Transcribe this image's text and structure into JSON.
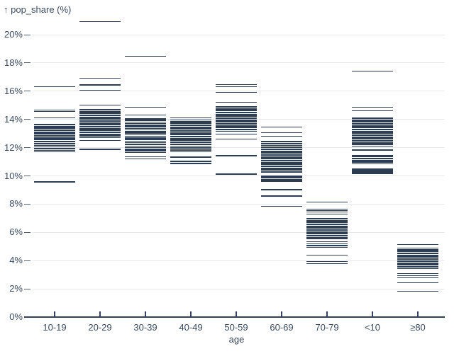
{
  "title": "↑ pop_share (%)",
  "chart_data": {
    "type": "tick-strip",
    "title": "↑ pop_share (%)",
    "xlabel": "age",
    "ylabel": "pop_share (%)",
    "grid": true,
    "legend": "none",
    "ylim": [
      0,
      21.5
    ],
    "y_ticks": [
      0,
      2,
      4,
      6,
      8,
      10,
      12,
      14,
      16,
      18,
      20
    ],
    "y_tick_labels": [
      "0%",
      "2%",
      "4%",
      "6%",
      "8%",
      "10%",
      "12%",
      "14%",
      "16%",
      "18%",
      "20%"
    ],
    "categories": [
      "10-19",
      "20-29",
      "30-39",
      "40-49",
      "50-59",
      "60-69",
      "70-79",
      "<10",
      "≥80"
    ],
    "colors": {
      "tick": "#2c3c52",
      "axis_text": "#3a4a61",
      "gridline": "#e6e8eb",
      "background": "#ffffff"
    },
    "series": [
      {
        "category": "10-19",
        "values": [
          16.3,
          14.65,
          14.52,
          14.1,
          13.65,
          13.57,
          13.49,
          13.41,
          13.33,
          13.25,
          13.17,
          13.09,
          13.01,
          12.93,
          12.85,
          12.77,
          12.69,
          12.61,
          12.53,
          12.45,
          12.37,
          12.29,
          12.21,
          12.13,
          12.02,
          11.9,
          11.78,
          11.66,
          9.55
        ]
      },
      {
        "category": "20-29",
        "values": [
          20.9,
          16.9,
          16.42,
          16.05,
          15.0,
          14.7,
          14.62,
          14.54,
          14.46,
          14.38,
          14.3,
          14.22,
          14.14,
          14.06,
          13.98,
          13.9,
          13.82,
          13.74,
          13.66,
          13.58,
          13.5,
          13.42,
          13.34,
          13.26,
          13.18,
          13.1,
          13.02,
          12.94,
          12.86,
          12.78,
          12.68,
          12.48,
          11.85
        ]
      },
      {
        "category": "30-39",
        "values": [
          18.45,
          14.85,
          14.3,
          14.05,
          13.96,
          13.87,
          13.78,
          13.69,
          13.6,
          13.51,
          13.42,
          13.33,
          13.24,
          13.15,
          13.06,
          12.97,
          12.88,
          12.79,
          12.7,
          12.61,
          12.52,
          12.43,
          12.34,
          12.25,
          12.16,
          12.07,
          11.98,
          11.89,
          11.8,
          11.72,
          11.64,
          11.33,
          11.18
        ]
      },
      {
        "category": "40-49",
        "values": [
          14.08,
          13.92,
          13.84,
          13.76,
          13.68,
          13.6,
          13.52,
          13.44,
          13.36,
          13.28,
          13.2,
          13.12,
          13.04,
          12.96,
          12.88,
          12.8,
          12.72,
          12.64,
          12.56,
          12.48,
          12.4,
          12.32,
          12.24,
          12.16,
          12.08,
          12.0,
          11.92,
          11.84,
          11.76,
          11.68,
          11.3,
          11.0,
          10.85
        ]
      },
      {
        "category": "50-59",
        "values": [
          16.45,
          16.3,
          15.9,
          15.2,
          14.9,
          14.82,
          14.74,
          14.66,
          14.58,
          14.5,
          14.42,
          14.34,
          14.26,
          14.18,
          14.1,
          14.02,
          13.94,
          13.86,
          13.78,
          13.7,
          13.62,
          13.54,
          13.46,
          13.38,
          13.3,
          13.22,
          13.14,
          12.95,
          12.6,
          11.4,
          10.1
        ]
      },
      {
        "category": "60-69",
        "values": [
          13.45,
          13.05,
          12.8,
          12.45,
          12.37,
          12.29,
          12.21,
          12.13,
          12.05,
          11.97,
          11.89,
          11.81,
          11.73,
          11.65,
          11.57,
          11.49,
          11.41,
          11.33,
          11.25,
          11.17,
          11.09,
          11.01,
          10.93,
          10.85,
          10.77,
          10.69,
          10.61,
          10.53,
          10.45,
          10.37,
          10.29,
          10.21,
          9.95,
          9.85,
          9.7,
          9.6,
          9.0,
          8.55,
          7.8
        ]
      },
      {
        "category": "70-79",
        "values": [
          8.1,
          7.62,
          7.52,
          7.42,
          7.25,
          6.98,
          6.9,
          6.82,
          6.74,
          6.66,
          6.58,
          6.5,
          6.42,
          6.34,
          6.26,
          6.18,
          6.1,
          6.02,
          5.94,
          5.86,
          5.78,
          5.7,
          5.62,
          5.54,
          5.3,
          5.16,
          5.04,
          4.9,
          4.35,
          3.9,
          3.76
        ]
      },
      {
        "category": "<10",
        "values": [
          17.4,
          14.85,
          14.6,
          14.1,
          14.02,
          13.94,
          13.86,
          13.78,
          13.7,
          13.62,
          13.54,
          13.46,
          13.38,
          13.3,
          13.22,
          13.14,
          13.06,
          12.98,
          12.9,
          12.82,
          12.74,
          12.66,
          12.58,
          12.5,
          12.42,
          12.34,
          12.26,
          12.18,
          12.1,
          11.8,
          11.4,
          11.32,
          11.24,
          11.16,
          11.08,
          11.0,
          10.92,
          10.84,
          10.45,
          10.35,
          10.25,
          10.15
        ]
      },
      {
        "category": "≥80",
        "values": [
          5.1,
          4.85,
          4.77,
          4.69,
          4.61,
          4.53,
          4.45,
          4.37,
          4.29,
          4.21,
          4.13,
          4.05,
          3.97,
          3.89,
          3.81,
          3.73,
          3.65,
          3.57,
          3.49,
          3.41,
          3.05,
          2.9,
          2.75,
          2.4,
          1.8
        ]
      }
    ]
  }
}
